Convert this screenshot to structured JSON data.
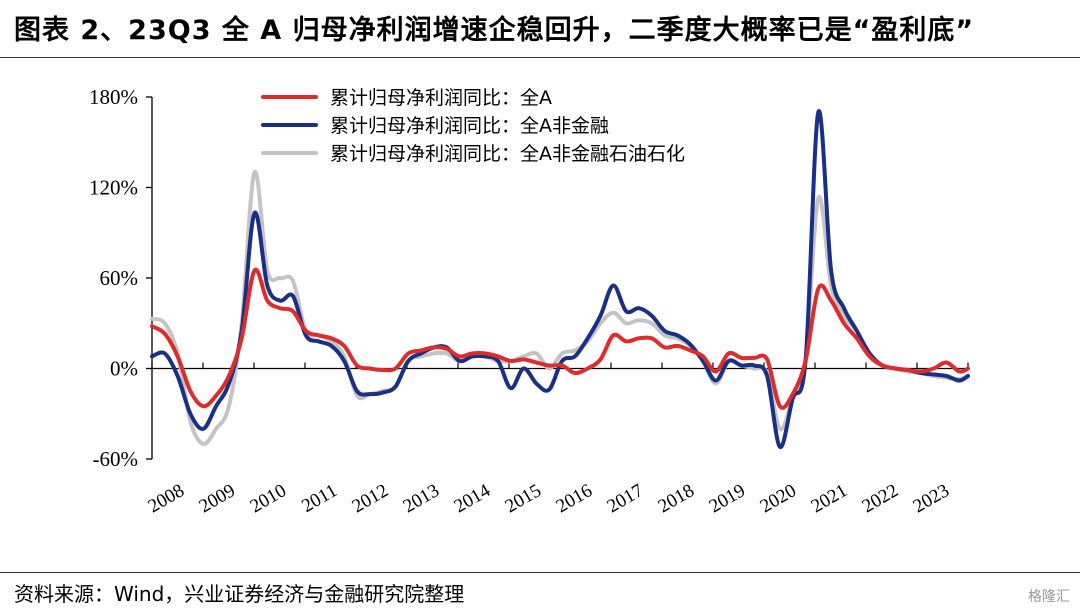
{
  "title": "图表 2、23Q3 全 A 归母净利润增速企稳回升，二季度大概率已是“盈利底”",
  "source": "资料来源：Wind，兴业证券经济与金融研究院整理",
  "watermark": "格隆汇",
  "chart_data": {
    "type": "line",
    "title": "",
    "xlabel": "",
    "ylabel": "",
    "ylim": [
      -60,
      180
    ],
    "y_ticks": [
      "-60%",
      "0%",
      "60%",
      "120%",
      "180%"
    ],
    "y_tick_values": [
      -60,
      0,
      60,
      120,
      180
    ],
    "x_ticks": [
      "2008",
      "2009",
      "2010",
      "2011",
      "2012",
      "2013",
      "2014",
      "2015",
      "2016",
      "2017",
      "2018",
      "2019",
      "2020",
      "2021",
      "2022",
      "2023"
    ],
    "xlim": [
      2008.0,
      2023.92
    ],
    "legend_position": "top",
    "series": [
      {
        "name": "累计归母净利润同比：全A",
        "color": "#e02b2b",
        "x": [
          2008.0,
          2008.25,
          2008.5,
          2008.75,
          2009.0,
          2009.25,
          2009.5,
          2009.75,
          2010.0,
          2010.25,
          2010.5,
          2010.75,
          2011.0,
          2011.25,
          2011.5,
          2011.75,
          2012.0,
          2012.25,
          2012.5,
          2012.75,
          2013.0,
          2013.25,
          2013.5,
          2013.75,
          2014.0,
          2014.25,
          2014.5,
          2014.75,
          2015.0,
          2015.25,
          2015.5,
          2015.75,
          2016.0,
          2016.25,
          2016.5,
          2016.75,
          2017.0,
          2017.25,
          2017.5,
          2017.75,
          2018.0,
          2018.25,
          2018.5,
          2018.75,
          2019.0,
          2019.25,
          2019.5,
          2019.75,
          2020.0,
          2020.25,
          2020.5,
          2020.75,
          2021.0,
          2021.25,
          2021.5,
          2021.75,
          2022.0,
          2022.25,
          2022.5,
          2022.75,
          2023.0,
          2023.25,
          2023.5,
          2023.75,
          2023.92
        ],
        "values": [
          28,
          23,
          8,
          -15,
          -25,
          -18,
          -5,
          20,
          65,
          45,
          40,
          38,
          25,
          22,
          20,
          15,
          2,
          0,
          -1,
          0,
          10,
          12,
          14,
          13,
          8,
          10,
          10,
          8,
          5,
          6,
          4,
          2,
          2,
          -3,
          0,
          6,
          22,
          18,
          20,
          20,
          14,
          15,
          12,
          8,
          -2,
          10,
          7,
          7,
          6,
          -25,
          -17,
          5,
          53,
          45,
          30,
          20,
          8,
          2,
          0,
          -1,
          -2,
          0,
          4,
          -2,
          0
        ]
      },
      {
        "name": "累计归母净利润同比：全A非金融",
        "color": "#1a2f86",
        "x": [
          2008.0,
          2008.25,
          2008.5,
          2008.75,
          2009.0,
          2009.25,
          2009.5,
          2009.75,
          2010.0,
          2010.25,
          2010.5,
          2010.75,
          2011.0,
          2011.25,
          2011.5,
          2011.75,
          2012.0,
          2012.25,
          2012.5,
          2012.75,
          2013.0,
          2013.25,
          2013.5,
          2013.75,
          2014.0,
          2014.25,
          2014.5,
          2014.75,
          2015.0,
          2015.25,
          2015.5,
          2015.75,
          2016.0,
          2016.25,
          2016.5,
          2016.75,
          2017.0,
          2017.25,
          2017.5,
          2017.75,
          2018.0,
          2018.25,
          2018.5,
          2018.75,
          2019.0,
          2019.25,
          2019.5,
          2019.75,
          2020.0,
          2020.25,
          2020.5,
          2020.75,
          2021.0,
          2021.25,
          2021.5,
          2021.75,
          2022.0,
          2022.25,
          2022.5,
          2022.75,
          2023.0,
          2023.25,
          2023.5,
          2023.75,
          2023.92
        ],
        "values": [
          8,
          10,
          -5,
          -30,
          -40,
          -25,
          -10,
          25,
          103,
          55,
          45,
          48,
          22,
          18,
          15,
          5,
          -15,
          -17,
          -16,
          -12,
          5,
          10,
          14,
          14,
          5,
          8,
          8,
          5,
          -13,
          0,
          -10,
          -14,
          5,
          8,
          20,
          35,
          55,
          38,
          40,
          35,
          25,
          22,
          16,
          5,
          -8,
          5,
          2,
          2,
          -5,
          -52,
          -20,
          5,
          170,
          65,
          40,
          25,
          10,
          2,
          0,
          -1,
          -3,
          -4,
          -5,
          -8,
          -5
        ]
      },
      {
        "name": "累计归母净利润同比：全A非金融石油石化",
        "color": "#c4c4c4",
        "x": [
          2008.0,
          2008.25,
          2008.5,
          2008.75,
          2009.0,
          2009.25,
          2009.5,
          2009.75,
          2010.0,
          2010.25,
          2010.5,
          2010.75,
          2011.0,
          2011.25,
          2011.5,
          2011.75,
          2012.0,
          2012.25,
          2012.5,
          2012.75,
          2013.0,
          2013.25,
          2013.5,
          2013.75,
          2014.0,
          2014.25,
          2014.5,
          2014.75,
          2015.0,
          2015.25,
          2015.5,
          2015.75,
          2016.0,
          2016.25,
          2016.5,
          2016.75,
          2017.0,
          2017.25,
          2017.5,
          2017.75,
          2018.0,
          2018.25,
          2018.5,
          2018.75,
          2019.0,
          2019.25,
          2019.5,
          2019.75,
          2020.0,
          2020.25,
          2020.5,
          2020.75,
          2021.0,
          2021.25,
          2021.5,
          2021.75,
          2022.0,
          2022.25,
          2022.5,
          2022.75,
          2023.0,
          2023.25,
          2023.5,
          2023.75,
          2023.92
        ],
        "values": [
          33,
          30,
          10,
          -35,
          -50,
          -40,
          -25,
          30,
          130,
          65,
          60,
          58,
          25,
          22,
          18,
          8,
          -18,
          -17,
          -15,
          -12,
          5,
          8,
          10,
          10,
          5,
          8,
          8,
          5,
          5,
          8,
          10,
          0,
          10,
          12,
          18,
          30,
          37,
          30,
          32,
          30,
          22,
          20,
          15,
          5,
          -10,
          5,
          2,
          0,
          -3,
          -40,
          -20,
          5,
          113,
          55,
          35,
          25,
          8,
          2,
          0,
          -2,
          -3,
          -5,
          -6,
          -7,
          -5
        ]
      }
    ]
  }
}
